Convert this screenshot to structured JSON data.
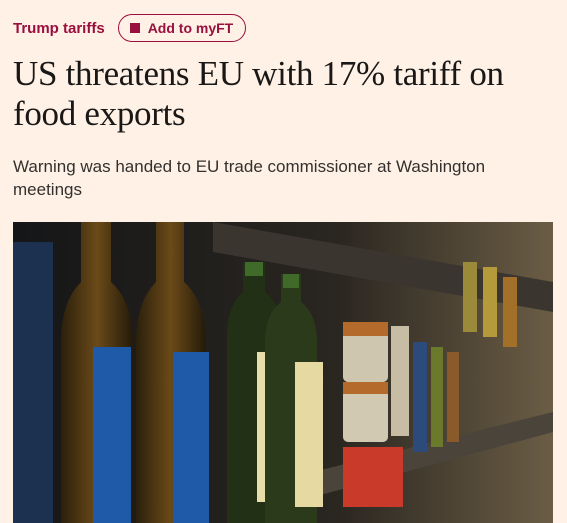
{
  "topic": "Trump tariffs",
  "follow_button": "Add to myFT",
  "headline": "US threatens EU with 17% tariff on food exports",
  "standfirst": "Warning was handed to EU trade commissioner at Washington meetings"
}
